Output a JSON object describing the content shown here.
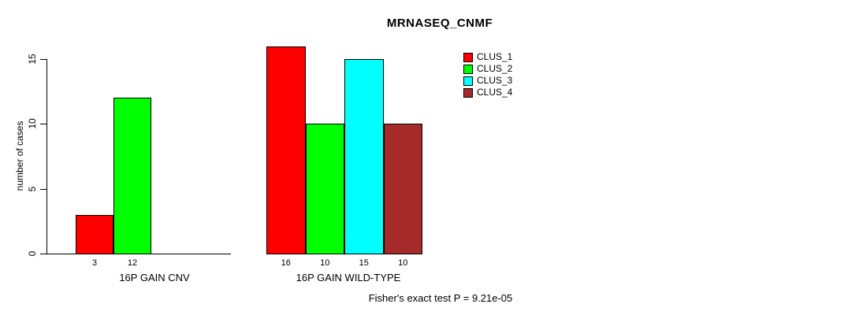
{
  "chart_data": {
    "type": "bar",
    "title": "MRNASEQ_CNMF",
    "ylabel": "number of cases",
    "xlabel": "",
    "ylim": [
      0,
      16.5
    ],
    "yticks": [
      0,
      5,
      10,
      15
    ],
    "grid": false,
    "bar_border_color": "#000000",
    "background_color": "#ffffff",
    "groups": [
      {
        "label": "16P GAIN CNV",
        "categories": [
          "CLUS_1",
          "CLUS_2"
        ],
        "values": [
          3,
          12
        ],
        "value_labels": [
          "3",
          "12"
        ],
        "colors": [
          "#FF0000",
          "#00FF00"
        ]
      },
      {
        "label": "16P GAIN WILD-TYPE",
        "categories": [
          "CLUS_1",
          "CLUS_2",
          "CLUS_3",
          "CLUS_4"
        ],
        "values": [
          16,
          10,
          15,
          10
        ],
        "value_labels": [
          "16",
          "10",
          "15",
          "10"
        ],
        "colors": [
          "#FF0000",
          "#00FF00",
          "#00FFFF",
          "#A52A2A"
        ]
      }
    ],
    "legend": {
      "position": "top-right",
      "entries": [
        {
          "label": "CLUS_1",
          "color": "#FF0000"
        },
        {
          "label": "CLUS_2",
          "color": "#00FF00"
        },
        {
          "label": "CLUS_3",
          "color": "#00FFFF"
        },
        {
          "label": "CLUS_4",
          "color": "#A52A2A"
        }
      ]
    },
    "annotation": "Fisher's exact test P = 9.21e-05"
  }
}
